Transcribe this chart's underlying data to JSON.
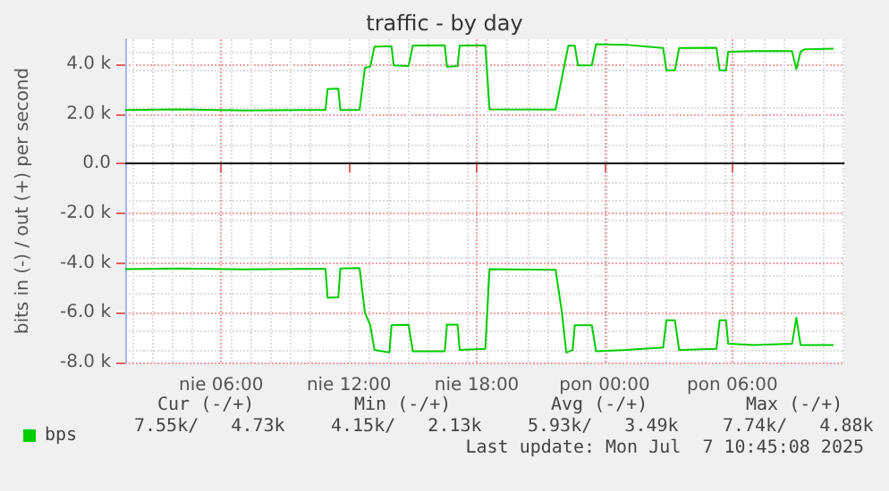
{
  "chart_data": {
    "type": "line",
    "title": "traffic - by day",
    "ylabel": "bits in (-) / out (+) per second",
    "xlim": [
      "2025-07-06T01:30",
      "2025-07-07T11:15"
    ],
    "xticks": [
      {
        "value": "2025-07-06T06:00",
        "label": "nie 06:00"
      },
      {
        "value": "2025-07-06T12:00",
        "label": "nie 12:00"
      },
      {
        "value": "2025-07-06T18:00",
        "label": "nie 18:00"
      },
      {
        "value": "2025-07-07T00:00",
        "label": "pon 00:00"
      },
      {
        "value": "2025-07-07T06:00",
        "label": "pon 06:00"
      }
    ],
    "ylim": [
      -8000,
      5000
    ],
    "yticks": [
      {
        "value": -8000,
        "label": "-8.0 k"
      },
      {
        "value": -6000,
        "label": "-6.0 k"
      },
      {
        "value": -4000,
        "label": "-4.0 k"
      },
      {
        "value": -2000,
        "label": "-2.0 k"
      },
      {
        "value": 0,
        "label": "0.0"
      },
      {
        "value": 2000,
        "label": "2.0 k"
      },
      {
        "value": 4000,
        "label": "4.0 k"
      }
    ],
    "series": [
      {
        "name": "bps",
        "color": "#00cc00",
        "x": [
          "2025-07-06T01:30",
          "2025-07-06T04:00",
          "2025-07-06T07:00",
          "2025-07-06T10:54",
          "2025-07-06T11:00",
          "2025-07-06T11:30",
          "2025-07-06T11:36",
          "2025-07-06T12:30",
          "2025-07-06T12:45",
          "2025-07-06T13:00",
          "2025-07-06T13:12",
          "2025-07-06T14:00",
          "2025-07-06T14:06",
          "2025-07-06T14:48",
          "2025-07-06T15:00",
          "2025-07-06T16:30",
          "2025-07-06T16:36",
          "2025-07-06T17:06",
          "2025-07-06T17:12",
          "2025-07-06T18:24",
          "2025-07-06T18:36",
          "2025-07-06T21:42",
          "2025-07-06T22:06",
          "2025-07-06T22:18",
          "2025-07-06T22:36",
          "2025-07-06T22:45",
          "2025-07-06T23:24",
          "2025-07-06T23:36",
          "2025-07-07T01:00",
          "2025-07-07T02:45",
          "2025-07-07T02:54",
          "2025-07-07T03:18",
          "2025-07-07T03:30",
          "2025-07-07T05:15",
          "2025-07-07T05:24",
          "2025-07-07T05:42",
          "2025-07-07T05:48",
          "2025-07-07T07:00",
          "2025-07-07T08:48",
          "2025-07-07T09:00",
          "2025-07-07T09:12",
          "2025-07-07T09:24",
          "2025-07-07T10:45"
        ],
        "values": [
          2150,
          2180,
          2140,
          2160,
          3000,
          3020,
          2150,
          2160,
          3850,
          3900,
          4700,
          4720,
          3950,
          3920,
          4750,
          4760,
          3900,
          3920,
          4750,
          4760,
          2180,
          2170,
          3900,
          4750,
          4740,
          3950,
          3950,
          4800,
          4780,
          4650,
          3750,
          3750,
          4650,
          4660,
          3750,
          3750,
          4500,
          4520,
          4520,
          3800,
          4500,
          4600,
          4620
        ]
      },
      {
        "color": "#00cc00",
        "x": [
          "2025-07-06T01:30",
          "2025-07-06T04:00",
          "2025-07-06T07:00",
          "2025-07-06T10:54",
          "2025-07-06T11:00",
          "2025-07-06T11:30",
          "2025-07-06T11:36",
          "2025-07-06T12:30",
          "2025-07-06T12:45",
          "2025-07-06T13:00",
          "2025-07-06T13:12",
          "2025-07-06T13:54",
          "2025-07-06T14:00",
          "2025-07-06T14:48",
          "2025-07-06T15:00",
          "2025-07-06T16:30",
          "2025-07-06T16:36",
          "2025-07-06T17:06",
          "2025-07-06T17:12",
          "2025-07-06T18:24",
          "2025-07-06T18:36",
          "2025-07-06T21:42",
          "2025-07-06T22:00",
          "2025-07-06T22:12",
          "2025-07-06T22:30",
          "2025-07-06T22:36",
          "2025-07-06T23:24",
          "2025-07-06T23:36",
          "2025-07-07T01:00",
          "2025-07-07T02:45",
          "2025-07-07T02:54",
          "2025-07-07T03:18",
          "2025-07-07T03:30",
          "2025-07-07T05:15",
          "2025-07-07T05:24",
          "2025-07-07T05:42",
          "2025-07-07T05:48",
          "2025-07-07T07:00",
          "2025-07-07T08:48",
          "2025-07-07T09:00",
          "2025-07-07T09:12",
          "2025-07-07T09:24",
          "2025-07-07T10:45"
        ],
        "values": [
          -4250,
          -4220,
          -4260,
          -4230,
          -5400,
          -5380,
          -4220,
          -4200,
          -6000,
          -6500,
          -7500,
          -7600,
          -6500,
          -6480,
          -7550,
          -7550,
          -6470,
          -6480,
          -7500,
          -7450,
          -4250,
          -4270,
          -6000,
          -7600,
          -7500,
          -6500,
          -6500,
          -7550,
          -7500,
          -7400,
          -6300,
          -6300,
          -7500,
          -7450,
          -6300,
          -6300,
          -7250,
          -7300,
          -7250,
          -6200,
          -7300,
          -7300,
          -7300
        ]
      }
    ],
    "ref_lines": [
      {
        "axis": "y",
        "value": 0,
        "color": "#000000"
      }
    ],
    "annotations": [
      "Cur (-/+)",
      "Min (-/+)",
      "Avg (-/+)",
      "Max (-/+)",
      "7.55k/   4.73k",
      "4.15k/   2.13k",
      "5.93k/   3.49k",
      "7.74k/   4.88k",
      "Last update: Mon Jul  7 10:45:08 2025"
    ],
    "grid": true,
    "legend": "bottom left",
    "marker": "none",
    "line_style": "solid"
  }
}
